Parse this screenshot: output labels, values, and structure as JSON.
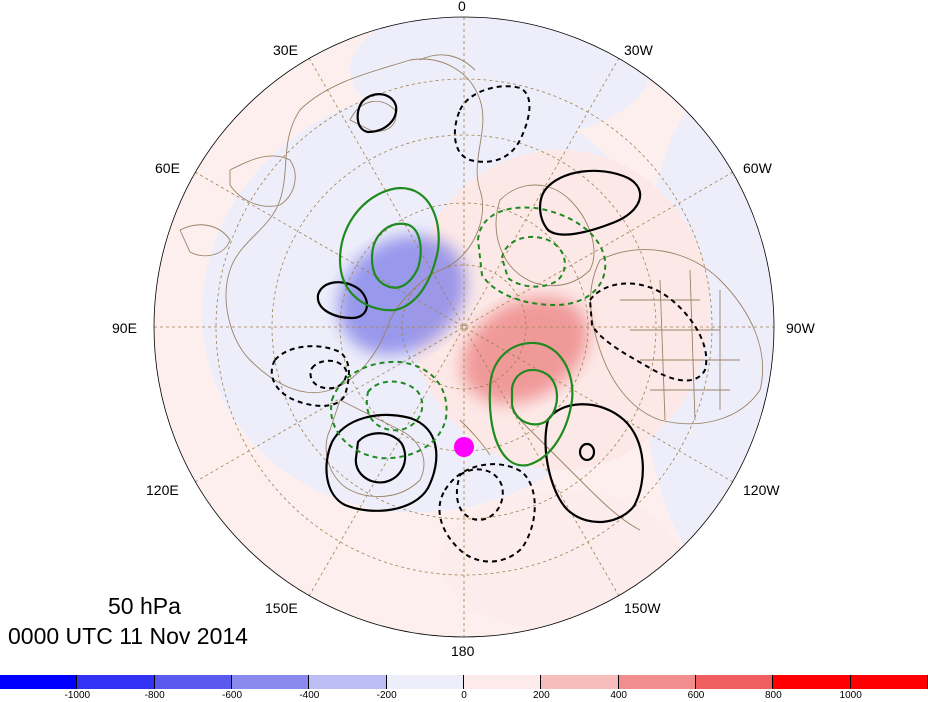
{
  "map": {
    "projection": "north-polar-stereographic",
    "longitude_labels": [
      "0",
      "30W",
      "60W",
      "90W",
      "120W",
      "150W",
      "180",
      "150E",
      "120E",
      "90E",
      "60E",
      "30E"
    ],
    "level": "50 hPa",
    "valid_time": "0000 UTC 11 Nov 2014",
    "colors": {
      "negative_shading": "#7b7be8",
      "positive_shading": "#ef8c8c",
      "positive_contour": "#000000",
      "negative_contour": "#000000",
      "green_contour": "#1f8a1f",
      "marker": "#ff00ff",
      "coastline": "#9a8266",
      "grid": "#a08050"
    },
    "features": [
      {
        "name": "negative anomaly",
        "shading": "blue",
        "region": "eastern Siberia / Arctic"
      },
      {
        "name": "positive anomaly",
        "shading": "red",
        "region": "North Pacific / Alaska"
      },
      {
        "name": "marker",
        "symbol": "magenta dot",
        "region": "central Arctic near 180"
      }
    ]
  },
  "colorbar": {
    "tick_labels": [
      "-1000",
      "-800",
      "-600",
      "-400",
      "-200",
      "0",
      "200",
      "400",
      "600",
      "800",
      "1000"
    ],
    "segments": [
      {
        "color": "#0000ff"
      },
      {
        "color": "#3232f5"
      },
      {
        "color": "#5959f0"
      },
      {
        "color": "#8a8aee"
      },
      {
        "color": "#bdbdf5"
      },
      {
        "color": "#eeeefb"
      },
      {
        "color": "#fdeaea"
      },
      {
        "color": "#f7bcbc"
      },
      {
        "color": "#f28d8d"
      },
      {
        "color": "#ef5f5f"
      },
      {
        "color": "#ff0000"
      },
      {
        "color": "#ff0000"
      }
    ]
  }
}
